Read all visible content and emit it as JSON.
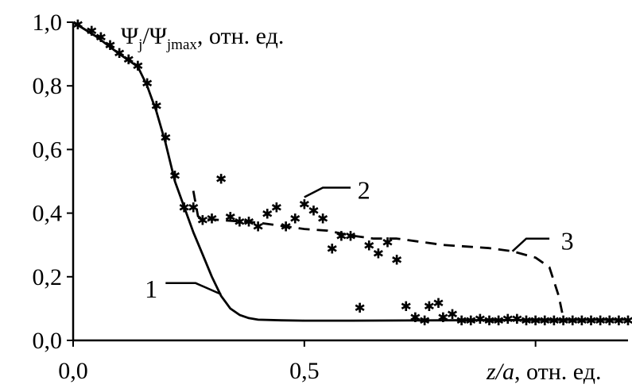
{
  "chart_data": {
    "type": "line",
    "title": "",
    "ylabel_main": "Ψ",
    "ylabel_sub": "j",
    "ylabel_sep": "/Ψ",
    "ylabel_sub2": "jmax",
    "ylabel_unit": ", отн. ед.",
    "xlabel_var": "z/a",
    "xlabel_unit": ", отн. ед.",
    "xlim": [
      0,
      1.2
    ],
    "ylim": [
      0,
      1.0
    ],
    "x_ticks": [
      {
        "value": 0.0,
        "label": "0,0"
      },
      {
        "value": 0.5,
        "label": "0,5"
      }
    ],
    "y_ticks": [
      {
        "value": 0.0,
        "label": "0,0"
      },
      {
        "value": 0.2,
        "label": "0,2"
      },
      {
        "value": 0.4,
        "label": "0,4"
      },
      {
        "value": 0.6,
        "label": "0,6"
      },
      {
        "value": 0.8,
        "label": "0,8"
      },
      {
        "value": 1.0,
        "label": "1,0"
      }
    ],
    "x_minor_ticks": [
      1.0
    ],
    "grid": false,
    "series": [
      {
        "id": "curve-1",
        "label": "1",
        "style": "solid",
        "x": [
          0.0,
          0.05,
          0.1,
          0.14,
          0.16,
          0.18,
          0.2,
          0.22,
          0.24,
          0.26,
          0.28,
          0.3,
          0.32,
          0.34,
          0.36,
          0.38,
          0.4,
          0.45,
          0.5,
          0.6,
          0.8,
          1.0,
          1.2
        ],
        "y": [
          1.0,
          0.955,
          0.9,
          0.86,
          0.8,
          0.72,
          0.62,
          0.5,
          0.42,
          0.34,
          0.27,
          0.2,
          0.14,
          0.1,
          0.08,
          0.07,
          0.065,
          0.063,
          0.062,
          0.062,
          0.063,
          0.064,
          0.065
        ]
      },
      {
        "id": "curve-2",
        "label": "2",
        "style": "dashed",
        "x": [
          0.26,
          0.265,
          0.27,
          0.28,
          0.3,
          0.35,
          0.4,
          0.45,
          0.5,
          0.55,
          0.6,
          0.65,
          0.7,
          0.75,
          0.8,
          0.85,
          0.9,
          0.95,
          1.0,
          1.03,
          1.05,
          1.06
        ],
        "y": [
          0.47,
          0.43,
          0.39,
          0.38,
          0.38,
          0.375,
          0.37,
          0.36,
          0.35,
          0.345,
          0.33,
          0.32,
          0.32,
          0.31,
          0.3,
          0.295,
          0.29,
          0.28,
          0.26,
          0.23,
          0.14,
          0.07
        ]
      }
    ],
    "scatter": {
      "id": "experimental-points",
      "marker": "✱",
      "points": [
        [
          0.01,
          0.995
        ],
        [
          0.04,
          0.975
        ],
        [
          0.06,
          0.955
        ],
        [
          0.08,
          0.93
        ],
        [
          0.1,
          0.905
        ],
        [
          0.12,
          0.885
        ],
        [
          0.14,
          0.865
        ],
        [
          0.16,
          0.81
        ],
        [
          0.18,
          0.74
        ],
        [
          0.2,
          0.64
        ],
        [
          0.22,
          0.52
        ],
        [
          0.24,
          0.42
        ],
        [
          0.26,
          0.42
        ],
        [
          0.28,
          0.38
        ],
        [
          0.3,
          0.385
        ],
        [
          0.32,
          0.51
        ],
        [
          0.34,
          0.39
        ],
        [
          0.36,
          0.375
        ],
        [
          0.38,
          0.375
        ],
        [
          0.4,
          0.36
        ],
        [
          0.42,
          0.4
        ],
        [
          0.44,
          0.42
        ],
        [
          0.46,
          0.36
        ],
        [
          0.48,
          0.385
        ],
        [
          0.5,
          0.43
        ],
        [
          0.52,
          0.41
        ],
        [
          0.54,
          0.385
        ],
        [
          0.56,
          0.29
        ],
        [
          0.58,
          0.33
        ],
        [
          0.6,
          0.33
        ],
        [
          0.64,
          0.3
        ],
        [
          0.66,
          0.275
        ],
        [
          0.68,
          0.31
        ],
        [
          0.7,
          0.255
        ],
        [
          0.62,
          0.105
        ],
        [
          0.72,
          0.11
        ],
        [
          0.74,
          0.075
        ],
        [
          0.76,
          0.065
        ],
        [
          0.77,
          0.11
        ],
        [
          0.79,
          0.12
        ],
        [
          0.8,
          0.075
        ],
        [
          0.82,
          0.085
        ],
        [
          0.84,
          0.065
        ],
        [
          0.86,
          0.065
        ],
        [
          0.88,
          0.07
        ],
        [
          0.9,
          0.065
        ],
        [
          0.92,
          0.065
        ],
        [
          0.94,
          0.07
        ],
        [
          0.96,
          0.07
        ],
        [
          0.98,
          0.065
        ],
        [
          1.0,
          0.065
        ],
        [
          1.02,
          0.065
        ],
        [
          1.04,
          0.065
        ],
        [
          1.06,
          0.065
        ],
        [
          1.08,
          0.065
        ],
        [
          1.1,
          0.065
        ],
        [
          1.12,
          0.065
        ],
        [
          1.14,
          0.065
        ],
        [
          1.16,
          0.065
        ],
        [
          1.18,
          0.065
        ],
        [
          1.2,
          0.065
        ]
      ]
    },
    "annotations": [
      {
        "id": "label-1",
        "text": "1",
        "leader": [
          [
            0.2,
            0.18
          ],
          [
            0.265,
            0.18
          ],
          [
            0.32,
            0.145
          ]
        ],
        "text_at": [
          0.155,
          0.135
        ]
      },
      {
        "id": "label-2",
        "text": "2",
        "leader": [
          [
            0.5,
            0.45
          ],
          [
            0.54,
            0.48
          ],
          [
            0.6,
            0.48
          ]
        ],
        "text_at": [
          0.615,
          0.445
        ]
      },
      {
        "id": "label-3",
        "text": "3",
        "leader": [
          [
            0.95,
            0.28
          ],
          [
            0.98,
            0.32
          ],
          [
            1.03,
            0.32
          ]
        ],
        "text_at": [
          1.055,
          0.285
        ]
      }
    ]
  }
}
